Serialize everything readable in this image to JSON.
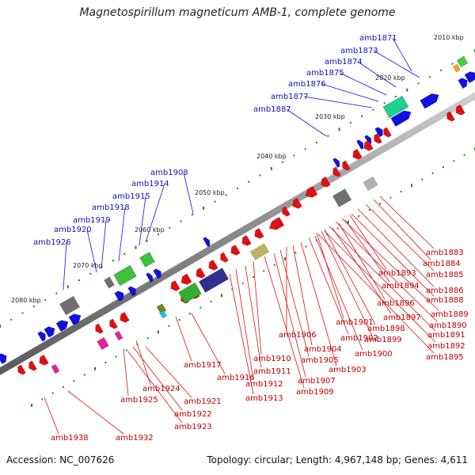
{
  "title": "Magnetospirillum magneticum AMB-1, complete genome",
  "footer": {
    "accession": "Accession: NC_007626",
    "summary": "Topology: circular; Length: 4,967,148 bp; Genes: 4,611"
  },
  "scale_labels": [
    "2010 kbp",
    "2020 kbp",
    "2030 kbp",
    "2040 kbp",
    "2050 kbp",
    "2060 kbp",
    "2070 kbp",
    "2080 kbp"
  ],
  "forward_gene_labels": [
    "amb1871",
    "amb1873",
    "amb1874",
    "amb1875",
    "amb1876",
    "amb1877",
    "amb1887",
    "amb1908",
    "amb1914",
    "amb1915",
    "amb1918",
    "amb1919",
    "amb1920",
    "amb1926"
  ],
  "reverse_gene_labels": [
    "amb1883",
    "amb1884",
    "amb1885",
    "amb1893",
    "amb1886",
    "amb1894",
    "amb1888",
    "amb1896",
    "amb1889",
    "amb1897",
    "amb1890",
    "amb1901",
    "amb1898",
    "amb1891",
    "amb1906",
    "amb1902",
    "amb1899",
    "amb1892",
    "amb1904",
    "amb1900",
    "amb1895",
    "amb1910",
    "amb1905",
    "amb1911",
    "amb1903",
    "amb1917",
    "amb1907",
    "amb1916",
    "amb1912",
    "amb1909",
    "amb1913",
    "amb1924",
    "amb1921",
    "amb1925",
    "amb1922",
    "amb1923",
    "amb1938",
    "amb1932"
  ],
  "colors": {
    "forward": "#1010e0",
    "reverse": "#e01010",
    "forward_label": "#1010c0",
    "reverse_label": "#c00000"
  }
}
